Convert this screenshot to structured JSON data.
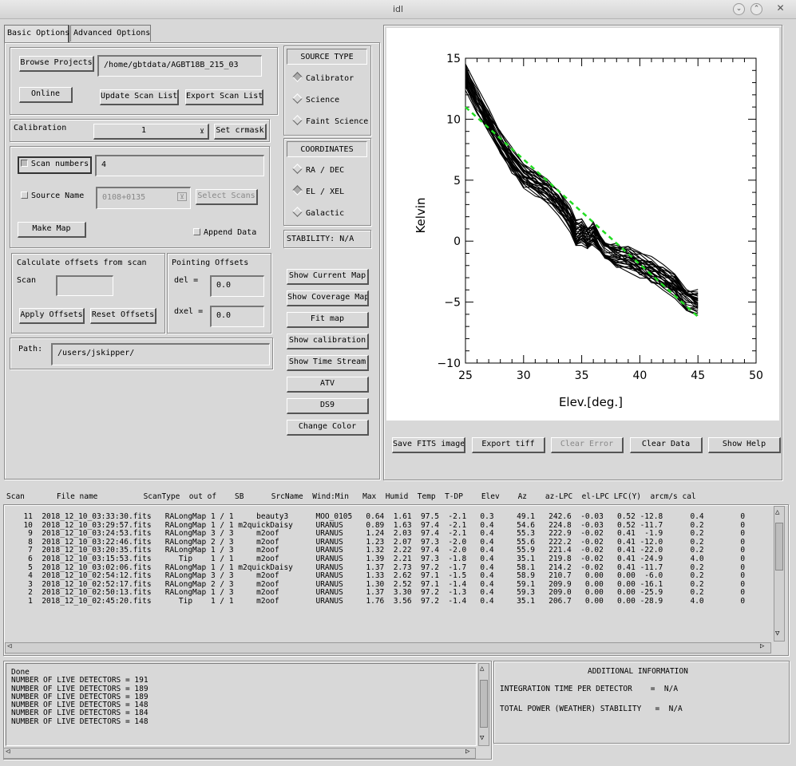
{
  "window": {
    "title": "idl"
  },
  "tabs": [
    {
      "label": "Basic Options"
    },
    {
      "label": "Advanced Options"
    }
  ],
  "project": {
    "browse_label": "Browse Projects",
    "path_value": "/home/gbtdata/AGBT18B_215_03",
    "online_label": "Online",
    "update_label": "Update Scan List",
    "export_label": "Export Scan List"
  },
  "calibration": {
    "label": "Calibration",
    "value": "1",
    "set_crmask_label": "Set crmask"
  },
  "scan_select": {
    "scan_numbers_label": "Scan numbers",
    "scan_numbers_value": "4",
    "source_name_label": "Source Name",
    "source_name_value": "0108+0135",
    "select_scans_label": "Select Scans",
    "make_map_label": "Make Map",
    "append_label": "Append Data"
  },
  "offsets": {
    "calc_title": "Calculate offsets from scan",
    "scan_label": "Scan",
    "scan_value": "",
    "apply_label": "Apply Offsets",
    "reset_label": "Reset Offsets",
    "pointing_title": "Pointing Offsets",
    "del_label": "del  =",
    "del_value": "0.0",
    "dxel_label": "dxel =",
    "dxel_value": "0.0"
  },
  "path": {
    "label": "Path:",
    "value": "/users/jskipper/"
  },
  "source_type": {
    "title": "SOURCE TYPE",
    "options": [
      "Calibrator",
      "Science",
      "Faint Science"
    ],
    "selected": 0
  },
  "coordinates": {
    "title": "COORDINATES",
    "options": [
      "RA / DEC",
      "EL / XEL",
      "Galactic"
    ],
    "selected": 1
  },
  "stability": {
    "text": "STABILITY:  N/A"
  },
  "side_buttons": [
    "Show Current Map",
    "Show Coverage Map",
    "Fit map",
    "Show calibration",
    "Show Time Stream",
    "ATV",
    "DS9",
    "Change Color"
  ],
  "plot_buttons": {
    "save_fits": "Save FITS image",
    "export_tiff": "Export tiff",
    "clear_error": "Clear Error",
    "clear_data": "Clear Data",
    "show_help": "Show Help"
  },
  "chart_data": {
    "type": "line",
    "xlabel": "Elev.[deg.]",
    "ylabel": "Kelvin",
    "xlim": [
      25,
      50
    ],
    "ylim": [
      -10,
      15
    ],
    "xticks": [
      "25",
      "30",
      "35",
      "40",
      "45",
      "50"
    ],
    "yticks": [
      "15",
      "10",
      "5",
      "0",
      "−5",
      "−10"
    ],
    "series": [
      {
        "style": "black-band",
        "x": [
          25,
          26,
          27,
          28,
          29,
          30,
          31,
          32,
          33,
          34,
          34.5,
          35,
          35.5,
          36,
          37,
          38,
          39,
          40,
          41,
          42,
          43,
          44,
          45
        ],
        "y": [
          13.5,
          11.5,
          9.8,
          8.0,
          6.6,
          5.4,
          4.8,
          4.2,
          3.2,
          1.8,
          0.6,
          0.8,
          0.3,
          0.6,
          -0.8,
          -1.2,
          -1.4,
          -2.0,
          -2.4,
          -3.0,
          -3.6,
          -4.6,
          -5.0
        ]
      },
      {
        "style": "green-dashed",
        "x": [
          25,
          45
        ],
        "y": [
          11,
          -6.2
        ]
      }
    ]
  },
  "scan_table": {
    "header": "Scan       File name          ScanType  out of    SB      SrcName  Wind:Min   Max  Humid  Temp  T-DP    Elev    Az    az-LPC  el-LPC LFC(Y)  arcm/s cal",
    "rows": [
      "  11  2018_12_10_03:33:30.fits   RALongMap 1 / 1     beauty3      MOO_0105   0.64  1.61  97.5  -2.1   0.3     49.1   242.6  -0.03   0.52 -12.8      0.4        0",
      "  10  2018_12_10_03:29:57.fits   RALongMap 1 / 1 m2quickDaisy     URANUS     0.89  1.63  97.4  -2.1   0.4     54.6   224.8  -0.03   0.52 -11.7      0.2        0",
      "   9  2018_12_10_03:24:53.fits   RALongMap 3 / 3     m2oof        URANUS     1.24  2.03  97.4  -2.1   0.4     55.3   222.9  -0.02   0.41  -1.9      0.2        0",
      "   8  2018_12_10_03:22:46.fits   RALongMap 2 / 3     m2oof        URANUS     1.23  2.07  97.3  -2.0   0.4     55.6   222.2  -0.02   0.41 -12.0      0.2        0",
      "   7  2018_12_10_03:20:35.fits   RALongMap 1 / 3     m2oof        URANUS     1.32  2.22  97.4  -2.0   0.4     55.9   221.4  -0.02   0.41 -22.0      0.2        0",
      "   6  2018_12_10_03:15:53.fits      Tip    1 / 1     m2oof        URANUS     1.39  2.21  97.3  -1.8   0.4     35.1   219.8  -0.02   0.41 -24.9      4.0        0",
      "   5  2018_12_10_03:02:06.fits   RALongMap 1 / 1 m2quickDaisy     URANUS     1.37  2.73  97.2  -1.7   0.4     58.1   214.2  -0.02   0.41 -11.7      0.2        0",
      "   4  2018_12_10_02:54:12.fits   RALongMap 3 / 3     m2oof        URANUS     1.33  2.62  97.1  -1.5   0.4     58.9   210.7   0.00   0.00  -6.0      0.2        0",
      "   3  2018_12_10_02:52:17.fits   RALongMap 2 / 3     m2oof        URANUS     1.30  2.52  97.1  -1.4   0.4     59.1   209.9   0.00   0.00 -16.1      0.2        0",
      "   2  2018_12_10_02:50:13.fits   RALongMap 1 / 3     m2oof        URANUS     1.37  3.30  97.2  -1.3   0.4     59.3   209.0   0.00   0.00 -25.9      0.2        0",
      "   1  2018_12_10_02:45:20.fits      Tip    1 / 1     m2oof        URANUS     1.76  3.56  97.2  -1.4   0.4     35.1   206.7   0.00   0.00 -28.9      4.0        0"
    ]
  },
  "console": {
    "lines": [
      "Done",
      "NUMBER OF LIVE DETECTORS = 191",
      "NUMBER OF LIVE DETECTORS = 189",
      "NUMBER OF LIVE DETECTORS = 189",
      "NUMBER OF LIVE DETECTORS = 148",
      "NUMBER OF LIVE DETECTORS = 184",
      "NUMBER OF LIVE DETECTORS = 148"
    ]
  },
  "additional_info": {
    "title": "ADDITIONAL INFORMATION",
    "integration": "INTEGRATION TIME PER DETECTOR    =  N/A",
    "stability": "TOTAL POWER (WEATHER) STABILITY   =  N/A"
  }
}
